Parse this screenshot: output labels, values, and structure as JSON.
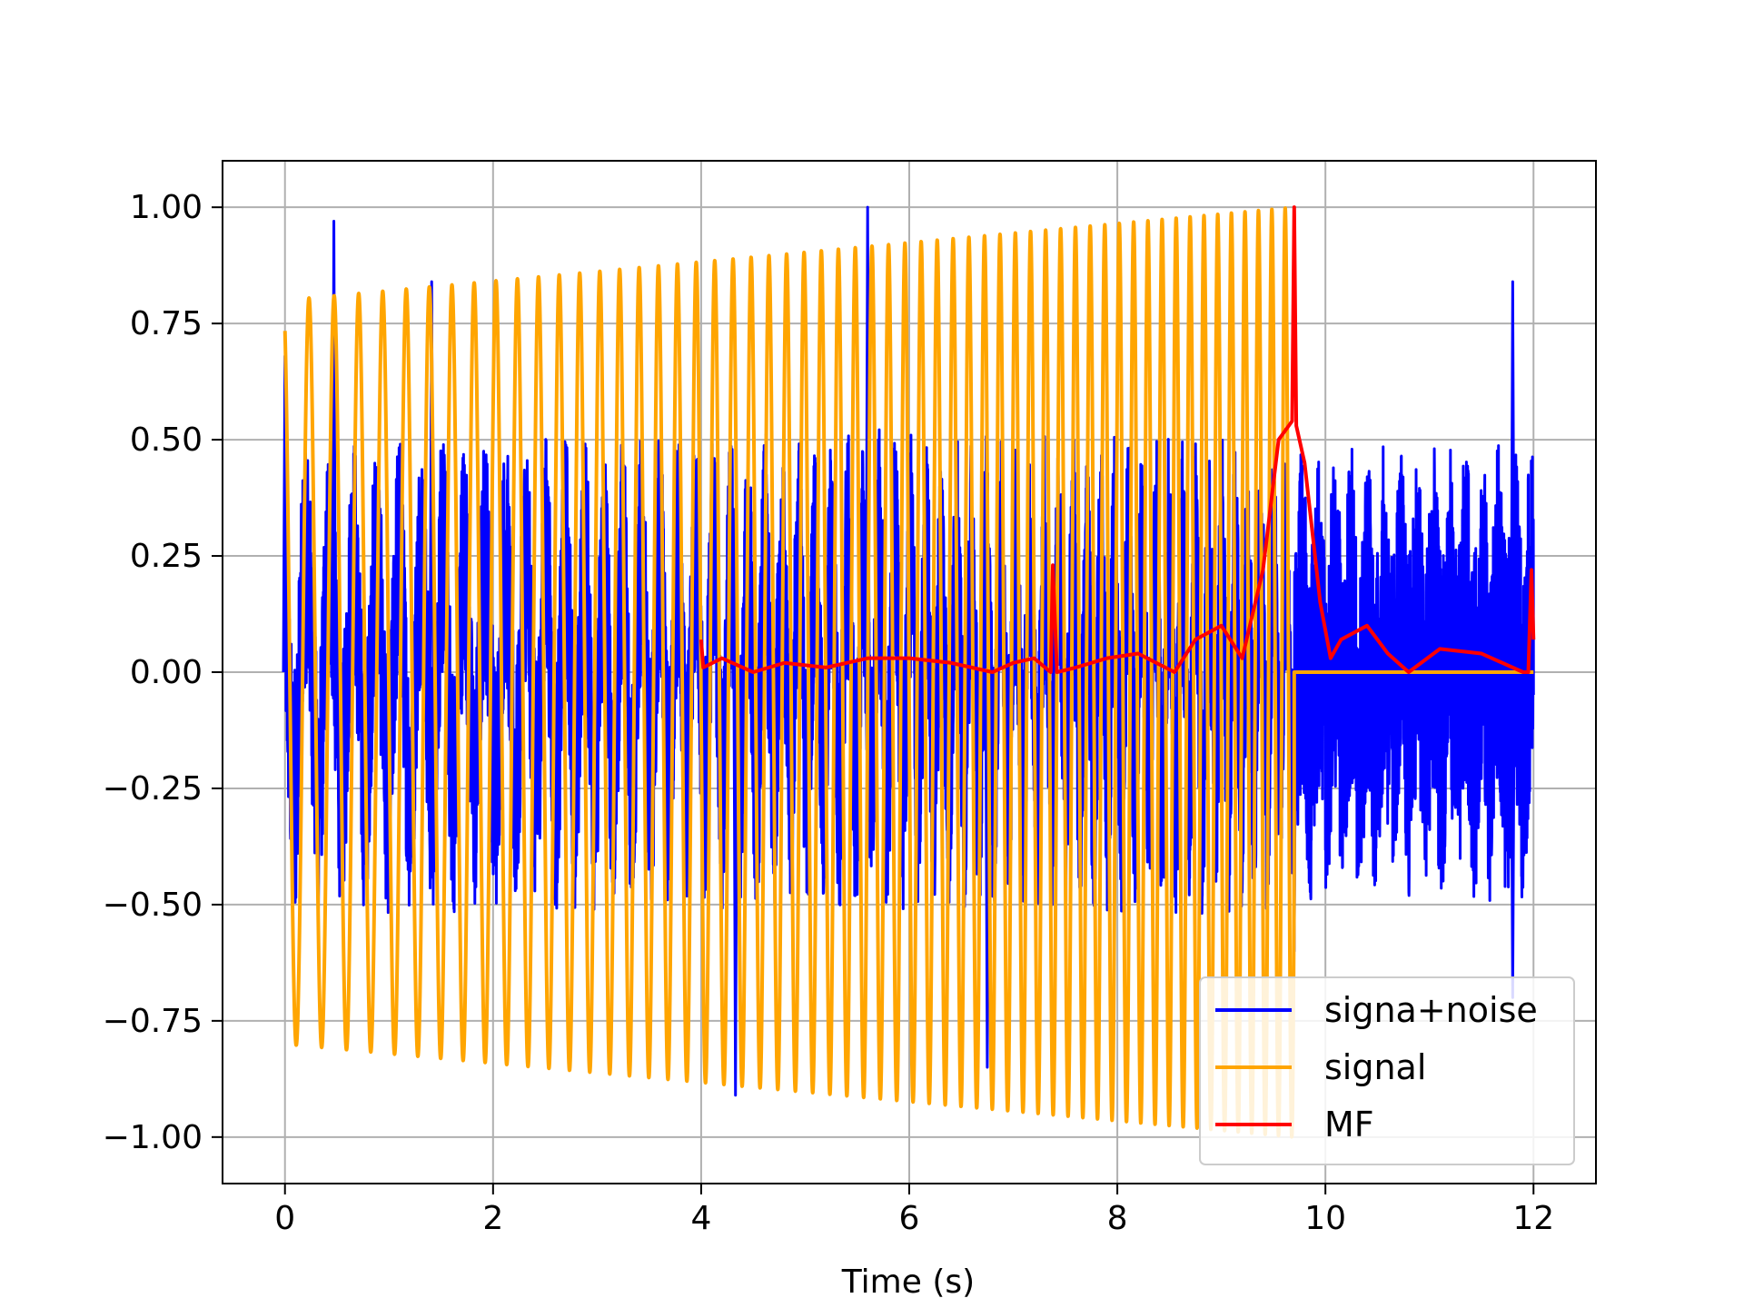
{
  "chart_data": {
    "type": "line",
    "title": "",
    "xlabel": "Time (s)",
    "ylabel": "",
    "xlim": [
      -0.6,
      12.6
    ],
    "ylim": [
      -1.1,
      1.1
    ],
    "xticks": [
      0,
      2,
      4,
      6,
      8,
      10,
      12
    ],
    "xtick_labels": [
      "0",
      "2",
      "4",
      "6",
      "8",
      "10",
      "12"
    ],
    "yticks": [
      1.0,
      0.75,
      0.5,
      0.25,
      0.0,
      -0.25,
      -0.5,
      -0.75,
      -1.0
    ],
    "ytick_labels": [
      "1.00",
      "0.75",
      "0.50",
      "0.25",
      "0.00",
      "−0.25",
      "−0.50",
      "−0.75",
      "−1.00"
    ],
    "grid": true,
    "legend_position": "bottom-right",
    "series": [
      {
        "name": "signa+noise",
        "color": "#0000ff",
        "description_type": "noisy-chirp",
        "x_range": [
          0,
          12
        ],
        "signal_end": 9.7,
        "peaks": [
          [
            0.0,
            0.68
          ],
          [
            0.47,
            0.97
          ],
          [
            1.41,
            0.84
          ],
          [
            4.33,
            -0.91
          ],
          [
            5.6,
            1.0
          ],
          [
            6.75,
            -0.85
          ],
          [
            9.7,
            -0.6
          ],
          [
            11.8,
            0.84
          ],
          [
            11.8,
            -0.7
          ]
        ]
      },
      {
        "name": "signal",
        "color": "#ffa500",
        "description_type": "chirp",
        "x_range": [
          0,
          9.7
        ],
        "amplitude_start": 0.8,
        "amplitude_end": 1.0,
        "zero_after": [
          9.7,
          12.0
        ]
      },
      {
        "name": "MF",
        "color": "#ff0000",
        "x": [
          4.0,
          4.02,
          4.2,
          4.5,
          4.8,
          5.2,
          5.6,
          6.0,
          6.4,
          6.8,
          7.0,
          7.2,
          7.36,
          7.38,
          7.42,
          7.6,
          7.9,
          8.2,
          8.55,
          8.75,
          9.0,
          9.2,
          9.4,
          9.55,
          9.68,
          9.7,
          9.72,
          9.8,
          9.95,
          10.05,
          10.15,
          10.4,
          10.6,
          10.8,
          11.1,
          11.5,
          11.9,
          11.95,
          11.98,
          12.0
        ],
        "y": [
          0.07,
          0.01,
          0.03,
          0.0,
          0.02,
          0.01,
          0.03,
          0.03,
          0.02,
          0.0,
          0.02,
          0.03,
          0.0,
          0.23,
          0.0,
          0.01,
          0.03,
          0.04,
          0.0,
          0.07,
          0.1,
          0.03,
          0.22,
          0.5,
          0.54,
          1.0,
          0.53,
          0.45,
          0.15,
          0.03,
          0.07,
          0.1,
          0.04,
          0.0,
          0.05,
          0.04,
          0.0,
          0.0,
          0.22,
          0.07
        ]
      }
    ]
  }
}
